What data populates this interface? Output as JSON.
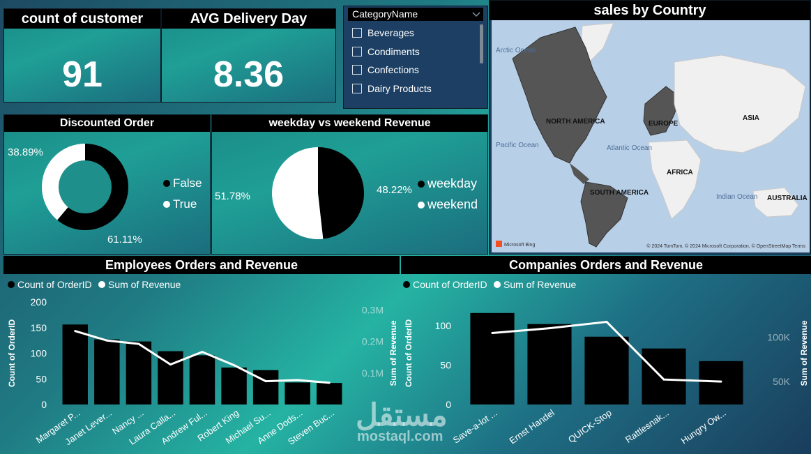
{
  "kpi_customers": {
    "title": "count of customer",
    "value": "91"
  },
  "kpi_delivery": {
    "title": "AVG Delivery Day",
    "value": "8.36"
  },
  "category_slicer": {
    "title": "CategoryName",
    "items": [
      "Beverages",
      "Condiments",
      "Confections",
      "Dairy Products"
    ]
  },
  "map": {
    "title": "sales by Country",
    "labels": {
      "arctic": "Arctic\nOcean",
      "north_america": "NORTH AMERICA",
      "europe": "EUROPE",
      "asia": "ASIA",
      "pacific": "Pacific\nOcean",
      "atlantic": "Atlantic\nOcean",
      "africa": "AFRICA",
      "south_america": "SOUTH AMERICA",
      "indian": "Indian\nOcean",
      "australia": "AUSTRALIA"
    },
    "brand": "Microsoft Bing",
    "attribution": "© 2024 TomTom, © 2024 Microsoft Corporation, © OpenStreetMap  Terms"
  },
  "discount_chart": {
    "title": "Discounted Order",
    "legend": [
      "False",
      "True"
    ],
    "label_true": "38.89%",
    "label_false": "61.11%"
  },
  "weekday_chart": {
    "title": "weekday vs weekend Revenue",
    "legend": [
      "weekday",
      "weekend"
    ],
    "label_weekend": "51.78%",
    "label_weekday": "48.22%"
  },
  "employees_chart": {
    "title": "Employees Orders and Revenue",
    "legend": [
      "Count of OrderID",
      "Sum of Revenue"
    ],
    "ylabel_left": "Count of OrderID",
    "ylabel_right": "Sum of Revenue",
    "left_ticks": [
      "200",
      "150",
      "100",
      "50",
      "0"
    ],
    "right_ticks": [
      "0.3M",
      "0.2M",
      "0.1M"
    ]
  },
  "companies_chart": {
    "title": "Companies Orders and Revenue",
    "legend": [
      "Count of OrderID",
      "Sum of Revenue"
    ],
    "ylabel_left": "Count of OrderID",
    "ylabel_right": "Sum of Revenue",
    "left_ticks": [
      "100",
      "50",
      "0"
    ],
    "right_ticks": [
      "100K",
      "50K"
    ]
  },
  "watermark": {
    "arabic": "مستقل",
    "latin": "mostaql.com"
  },
  "colors": {
    "bar": "#000000",
    "line": "#ffffff",
    "accent_dark": "#000000",
    "accent_light": "#ffffff"
  },
  "chart_data": [
    {
      "type": "pie",
      "title": "Discounted Order",
      "donut": true,
      "categories": [
        "False",
        "True"
      ],
      "values": [
        61.11,
        38.89
      ]
    },
    {
      "type": "pie",
      "title": "weekday vs weekend Revenue",
      "categories": [
        "weekday",
        "weekend"
      ],
      "values": [
        48.22,
        51.78
      ]
    },
    {
      "type": "bar",
      "title": "Employees Orders and Revenue",
      "categories": [
        "Margaret P...",
        "Janet Lever...",
        "Nancy ...",
        "Laura Calla...",
        "Andrew Ful...",
        "Robert King",
        "Michael Su...",
        "Anne Dods...",
        "Steven Buc..."
      ],
      "series": [
        {
          "name": "Count of OrderID",
          "axis": "left",
          "values": [
            156,
            127,
            123,
            104,
            96,
            72,
            67,
            43,
            42
          ]
        },
        {
          "name": "Sum of Revenue",
          "axis": "right",
          "type": "line",
          "values": [
            232890,
            202813,
            192108,
            126862,
            166538,
            124568,
            73913,
            77308,
            68792
          ]
        }
      ],
      "ylim": [
        0,
        200
      ],
      "ylim_right": [
        0,
        325000
      ]
    },
    {
      "type": "bar",
      "title": "Companies Orders and Revenue",
      "categories": [
        "Save-a-lot ...",
        "Ernst Handel",
        "QUICK-Stop",
        "Rattlesnak...",
        "Hungry Ow..."
      ],
      "series": [
        {
          "name": "Count of OrderID",
          "axis": "left",
          "values": [
            116,
            102,
            86,
            71,
            55
          ]
        },
        {
          "name": "Sum of Revenue",
          "axis": "right",
          "type": "line",
          "values": [
            104875,
            110277,
            117483,
            52245,
            49980
          ]
        }
      ],
      "ylim": [
        0,
        130
      ],
      "ylim_right": [
        24000,
        140000
      ]
    }
  ]
}
